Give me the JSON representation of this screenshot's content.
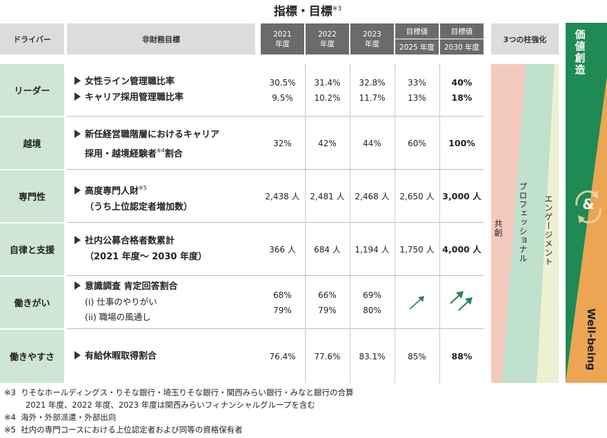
{
  "title": "指標・目標",
  "title_note": "※3",
  "header": {
    "driver": "ドライバー",
    "goal": "非財務目標",
    "years": [
      {
        "top": "2021",
        "bottom": "年度"
      },
      {
        "top": "2022",
        "bottom": "年度"
      },
      {
        "top": "2023",
        "bottom": "年度"
      }
    ],
    "target_label": "目標値",
    "target_2025": "2025 年度",
    "target_2030": "2030 年度",
    "pillars": "3つの柱強化"
  },
  "rows": [
    {
      "driver": "リーダー",
      "goals": [
        "女性ライン管理職比率",
        "キャリア採用管理職比率"
      ],
      "values": [
        [
          "30.5%",
          "9.5%"
        ],
        [
          "31.4%",
          "10.2%"
        ],
        [
          "32.8%",
          "11.7%"
        ],
        [
          "33%",
          "13%"
        ],
        [
          "40%",
          "18%"
        ]
      ]
    },
    {
      "driver": "越境",
      "goal_line1": "新任経営職階層におけるキャリア",
      "goal_line2a": "採用・越境経験者",
      "goal_line2_note": "※4",
      "goal_line2b": "割合",
      "values": [
        "32%",
        "42%",
        "44%",
        "60%",
        "100%"
      ]
    },
    {
      "driver": "専門性",
      "goal_line1": "高度専門人財",
      "goal_line1_note": "※5",
      "goal_line2": "（うち上位認定者増加数）",
      "values": [
        "2,438 人",
        "2,481 人",
        "2,468 人",
        "2,650 人",
        "3,000 人"
      ]
    },
    {
      "driver": "自律と支援",
      "goal_line1": "社内公募合格者数累計",
      "goal_line2": "（2021 年度～ 2030 年度）",
      "values": [
        "366 人",
        "684 人",
        "1,194 人",
        "1,750 人",
        "4,000 人"
      ]
    },
    {
      "driver": "働きがい",
      "goal_line1": "意識調査 肯定回答割合",
      "goal_sub1": "(i) 仕事のやりがい",
      "goal_sub2": "(ii) 職場の風通し",
      "values": [
        [
          "68%",
          "79%"
        ],
        [
          "66%",
          "79%"
        ],
        [
          "69%",
          "80%"
        ]
      ],
      "target_2025_icon": "single-up-arrow-icon",
      "target_2030_icon": "double-up-arrow-icon"
    },
    {
      "driver": "働きやすさ",
      "goal_line1": "有給休暇取得割合",
      "values": [
        "76.4%",
        "77.6%",
        "83.1%",
        "85%",
        "88%"
      ]
    }
  ],
  "pillars": {
    "kyoso": "共創",
    "professional": "プロフェッショナル",
    "engagement": "エンゲージメント"
  },
  "value_creation": {
    "top": "価値創造",
    "amp": "&",
    "bottom": "Well-being"
  },
  "colors": {
    "driver_bg": "#cfe6d3",
    "header_dark": "#6b6b6b",
    "header_gray": "#dcdcdc",
    "kyoso": "#f3c9bd",
    "professional": "#bfe0cd",
    "engagement": "#eef0d2",
    "green": "#1f8a54",
    "orange": "#eca552"
  },
  "notes": [
    {
      "mark": "※3",
      "line1": "りそなホールディングス・りそな銀行・埼玉りそな銀行・関西みらい銀行・みなと銀行の合算",
      "line2": "2021 年度、2022 年度、2023 年度は関西みらいフィナンシャルグループを含む"
    },
    {
      "mark": "※4",
      "line1": "海外・外部派遣・外部出向"
    },
    {
      "mark": "※5",
      "line1": "社内の専門コースにおける上位認定者および同等の資格保有者"
    }
  ]
}
